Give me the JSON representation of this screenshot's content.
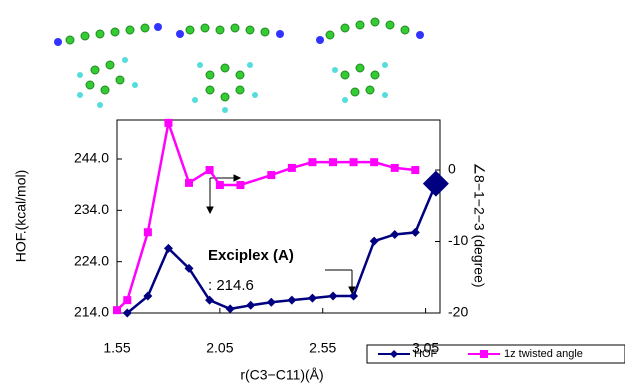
{
  "chart_data": {
    "type": "line",
    "x_label": "r(C3−C11)(Å)",
    "y_label": "HOF.(kcal/mol)",
    "y2_label": "∠8−1−2−3 (degree)",
    "annotations": [
      "Exciplex (A)",
      ": 214.6"
    ],
    "xlim": [
      1.55,
      3.12
    ],
    "xticks": [
      1.55,
      2.05,
      2.55,
      3.05
    ],
    "ylim": [
      214,
      251.6
    ],
    "yticks": [
      {
        "value": 214,
        "label": "214.0"
      },
      {
        "value": 224,
        "label": "224.0"
      },
      {
        "value": 234,
        "label": "234.0"
      },
      {
        "value": 244,
        "label": "244.0"
      }
    ],
    "y2lim": [
      -20,
      7
    ],
    "y2ticks": [
      -20,
      -10,
      0
    ],
    "legend": "bottom-right",
    "series": [
      {
        "name": "HOF",
        "color": "#000080",
        "x": [
          1.6,
          1.7,
          1.8,
          1.9,
          2.0,
          2.1,
          2.2,
          2.3,
          2.4,
          2.5,
          2.6,
          2.7,
          2.8,
          2.9,
          3.0,
          3.1
        ],
        "values": [
          214.0,
          217.3,
          226.6,
          222.7,
          216.5,
          214.8,
          215.5,
          216.1,
          216.5,
          216.9,
          217.3,
          217.3,
          228.0,
          229.3,
          229.7,
          239.2
        ]
      },
      {
        "name": "1z twisted angle",
        "color": "#ff00ff",
        "axis": "y2",
        "x": [
          1.55,
          1.6,
          1.7,
          1.8,
          1.9,
          2.0,
          2.05,
          2.15,
          2.3,
          2.4,
          2.5,
          2.6,
          2.7,
          2.8,
          2.9,
          3.0
        ],
        "values": [
          -19.6,
          -18.2,
          -8.7,
          6.6,
          -1.8,
          0,
          -2.1,
          -2.1,
          -0.7,
          0.3,
          1.1,
          1.1,
          1.1,
          1.1,
          0.3,
          0
        ]
      }
    ]
  }
}
